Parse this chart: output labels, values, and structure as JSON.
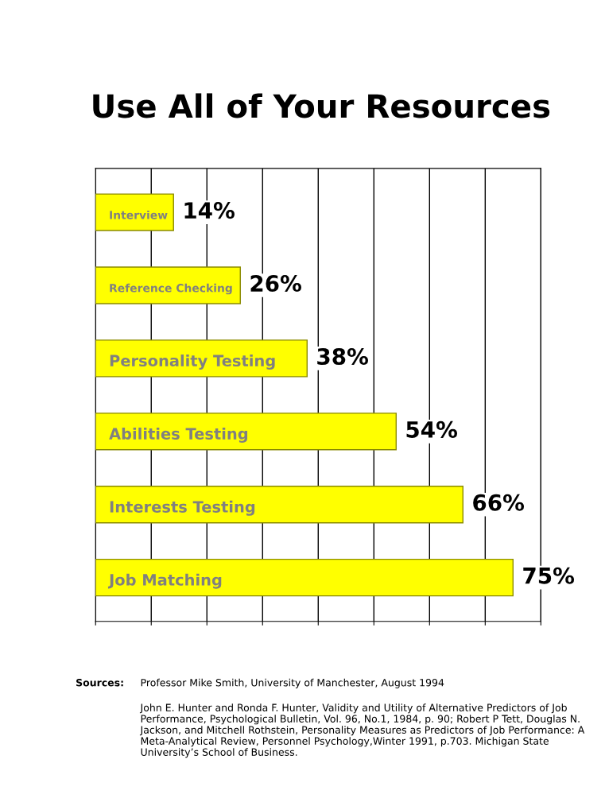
{
  "chart_data": {
    "type": "bar",
    "orientation": "horizontal",
    "title": "Use All of Your Resources",
    "categories": [
      "Interview",
      "Reference Checking",
      "Personality Testing",
      "Abilities Testing",
      "Interests Testing",
      "Job Matching"
    ],
    "values": [
      14,
      26,
      38,
      54,
      66,
      75
    ],
    "value_labels": [
      "14%",
      "26%",
      "38%",
      "54%",
      "66%",
      "75%"
    ],
    "color": "#ffff00",
    "xlim": [
      0,
      80
    ],
    "xticks": [
      {
        "value": 0,
        "label": null
      },
      {
        "value": 10,
        "label": null
      },
      {
        "value": 20,
        "label": null
      },
      {
        "value": 30,
        "label": null
      },
      {
        "value": 40,
        "label": null
      },
      {
        "value": 50,
        "label": null
      },
      {
        "value": 60,
        "label": null
      },
      {
        "value": 70,
        "label": null
      },
      {
        "value": 80,
        "label": null
      }
    ],
    "grid": "x",
    "annotations": [
      "Sources:",
      "Professor Mike Smith, University of Manchester, August 1994",
      "John E. Hunter and Ronda F. Hunter, Validity and Utility of Alternative Predictors of Job Performance, Psychological Bulletin, Vol. 96, No.1, 1984, p. 90; Robert P Tett, Douglas N. Jackson, and Mitchell Rothstein, Personality Measures as Predictors of Job Performance: A Meta-Analytical Review, Personnel Psychology,Winter 1991, p.703. Michigan State University’s School of Business."
    ]
  }
}
